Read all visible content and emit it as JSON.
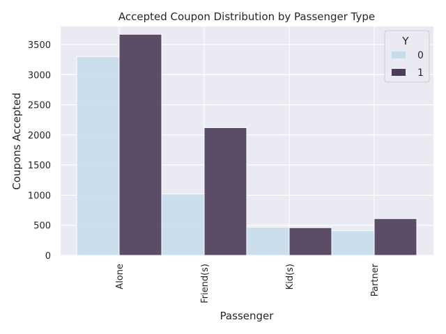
{
  "chart_data": {
    "type": "bar",
    "title": "Accepted Coupon Distribution by Passenger Type",
    "xlabel": "Passenger",
    "ylabel": "Coupons Accepted",
    "categories": [
      "Alone",
      "Friend(s)",
      "Kid(s)",
      "Partner"
    ],
    "series": [
      {
        "name": "0",
        "values": [
          3300,
          1020,
          470,
          410
        ],
        "color": "#c6dcec"
      },
      {
        "name": "1",
        "values": [
          3670,
          2120,
          460,
          610
        ],
        "color": "#4b3c59"
      }
    ],
    "ylim": [
      0,
      3800
    ],
    "yticks": [
      0,
      500,
      1000,
      1500,
      2000,
      2500,
      3000,
      3500
    ],
    "grid": true,
    "legend": {
      "title": "Y",
      "position": "top-right"
    },
    "colors": {
      "background": "#eaeaf2",
      "grid": "#ffffff"
    }
  }
}
